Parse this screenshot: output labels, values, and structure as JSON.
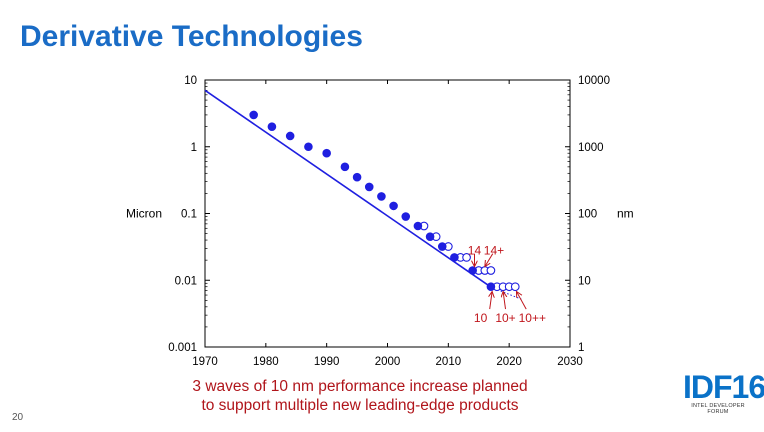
{
  "slide": {
    "title": "Derivative Technologies",
    "caption_line1": "3 waves of 10 nm performance increase planned",
    "caption_line2": "to support multiple new leading-edge products",
    "slide_number": "20",
    "logo_text": "IDF16",
    "logo_subtext": "INTEL DEVELOPER FORUM"
  },
  "colors": {
    "title": "#1a6cc6",
    "series": "#1f1fe0",
    "annotation": "#c0161c",
    "caption": "#b0151b"
  },
  "chart_data": {
    "type": "scatter",
    "scale_y": "log",
    "xlim": [
      1970,
      2030
    ],
    "ylim": [
      0.001,
      10
    ],
    "x_ticks": [
      "1970",
      "1980",
      "1990",
      "2000",
      "2010",
      "2020",
      "2030"
    ],
    "y_ticks_left": [
      "10",
      "1",
      "0.1",
      "0.01",
      "0.001"
    ],
    "y_ticks_right": [
      "10000",
      "1000",
      "100",
      "10",
      "1"
    ],
    "ylabel_left": "Micron",
    "ylabel_right": "nm",
    "grid": false,
    "trend_line": [
      [
        1970,
        7
      ],
      [
        2017,
        0.0079
      ]
    ],
    "trend_extension": [
      [
        2017,
        0.0079
      ],
      [
        2022,
        0.0052
      ]
    ],
    "series": [
      {
        "style": "filled",
        "points": [
          [
            1978,
            3
          ],
          [
            1981,
            2
          ],
          [
            1984,
            1.45
          ],
          [
            1987,
            1
          ],
          [
            1990,
            0.8
          ],
          [
            1993,
            0.5
          ],
          [
            1995,
            0.35
          ],
          [
            1997,
            0.25
          ],
          [
            1999,
            0.18
          ],
          [
            2001,
            0.13
          ],
          [
            2003,
            0.09
          ],
          [
            2005,
            0.065
          ],
          [
            2007,
            0.045
          ],
          [
            2009,
            0.032
          ],
          [
            2011,
            0.022
          ],
          [
            2014,
            0.014
          ],
          [
            2017,
            0.008
          ]
        ]
      },
      {
        "style": "open",
        "points": [
          [
            2006,
            0.065
          ],
          [
            2008,
            0.045
          ],
          [
            2010,
            0.032
          ],
          [
            2012,
            0.022
          ],
          [
            2013,
            0.022
          ],
          [
            2015,
            0.014
          ],
          [
            2016,
            0.014
          ],
          [
            2017,
            0.014
          ],
          [
            2018,
            0.008
          ],
          [
            2019,
            0.008
          ],
          [
            2020,
            0.008
          ],
          [
            2021,
            0.008
          ]
        ]
      }
    ],
    "annotations": [
      {
        "text": "14",
        "label_x": 2014.3,
        "label_y": 0.028,
        "arrow_from": [
          2014.3,
          0.025
        ],
        "arrow_to": [
          2014.3,
          0.016
        ]
      },
      {
        "text": "14+",
        "label_x": 2017.5,
        "label_y": 0.028,
        "arrow_from": [
          2017.3,
          0.025
        ],
        "arrow_to": [
          2016.0,
          0.016
        ]
      },
      {
        "text": "10",
        "label_x": 2015.3,
        "label_y": 0.0027,
        "arrow_from": [
          2016.8,
          0.0037
        ],
        "arrow_to": [
          2017.2,
          0.0068
        ]
      },
      {
        "text": "10+",
        "label_x": 2019.4,
        "label_y": 0.0027,
        "arrow_from": [
          2019.4,
          0.0037
        ],
        "arrow_to": [
          2019.0,
          0.0068
        ]
      },
      {
        "text": "10++",
        "label_x": 2023.8,
        "label_y": 0.0027,
        "arrow_from": [
          2022.8,
          0.0037
        ],
        "arrow_to": [
          2021.2,
          0.0068
        ]
      }
    ]
  }
}
